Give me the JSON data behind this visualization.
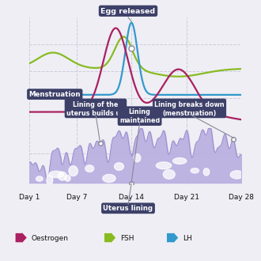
{
  "bg_color": "#eeeef4",
  "plot_bg": "#ffffff",
  "grid_color": "#ccccdd",
  "label_box_color": "#3d4068",
  "label_text_color": "#ffffff",
  "uterus_fill": "#b8aee0",
  "uterus_edge": "#9988cc",
  "oestrogen_color": "#aa2060",
  "fsh_color": "#88bb22",
  "lh_color": "#3399cc",
  "legend_bg": "#dcdce8",
  "day_labels": [
    "Day 1",
    "Day 7",
    "Day 14",
    "Day 21",
    "Day 28"
  ],
  "day_positions": [
    1,
    7,
    14,
    21,
    28
  ],
  "title_egg": "Egg released",
  "label_menstruation": "Menstruation",
  "label_lining_builds": "Lining of the\nuterus builds up",
  "label_lining_maintained": "Lining\nmaintained",
  "label_lining_breaks": "Lining breaks down\n(menstruation)",
  "label_uterus": "Uterus lining",
  "legend_oestrogen": "Oestrogen",
  "legend_fsh": "FSH",
  "legend_lh": "LH"
}
